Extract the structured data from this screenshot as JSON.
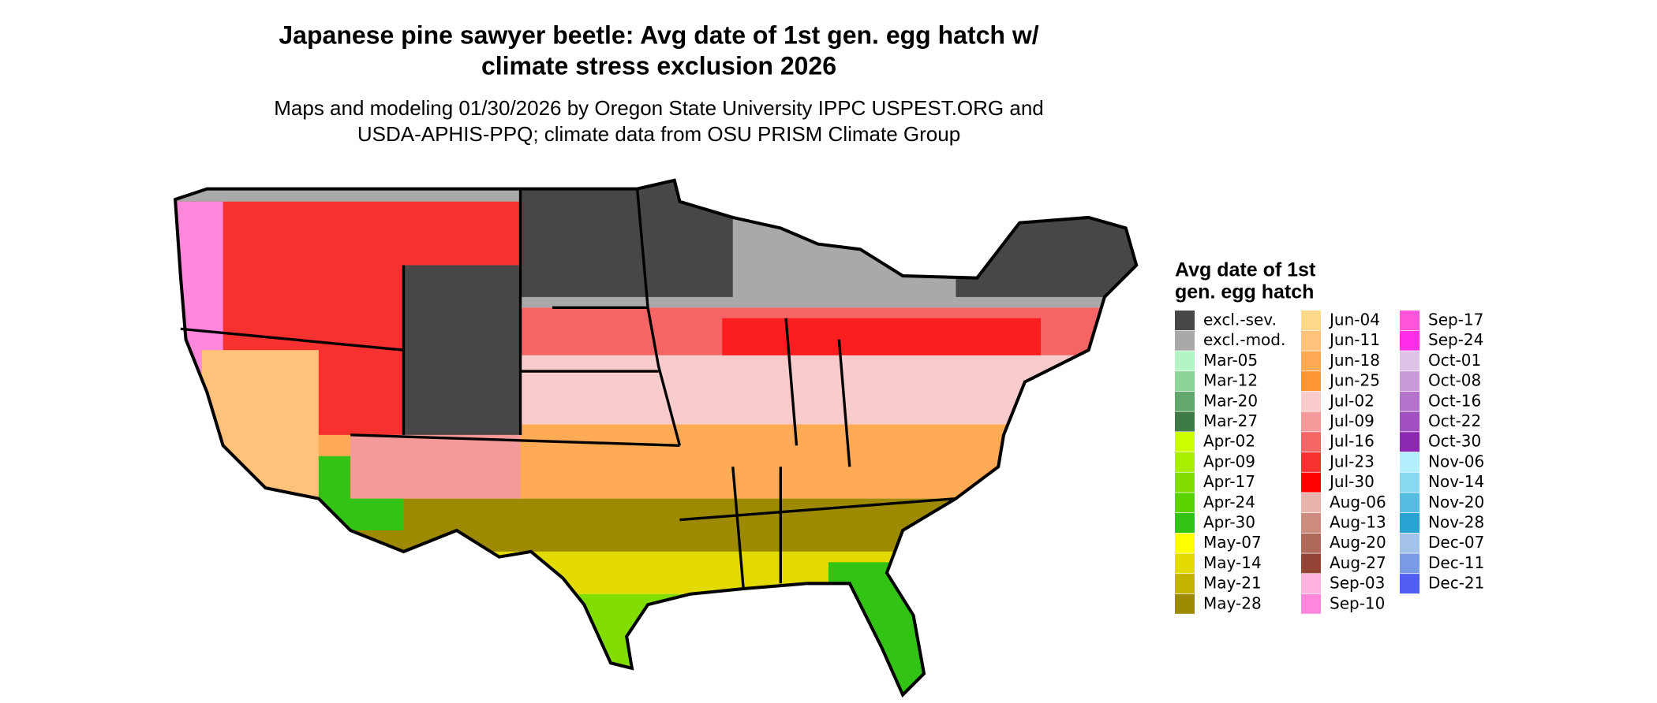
{
  "header": {
    "title": [
      "Japanese pine sawyer beetle: Avg date of 1st gen. egg hatch w/",
      "climate stress exclusion 2026"
    ],
    "subtitle": [
      "Maps and modeling 01/30/2026 by Oregon State University IPPC USPEST.ORG and",
      "USDA-APHIS-PPQ; climate data from OSU PRISM Climate Group"
    ]
  },
  "legend": {
    "title": [
      "Avg date of 1st",
      "gen. egg hatch"
    ],
    "items": [
      {
        "label": "excl.-sev.",
        "color": "#474747"
      },
      {
        "label": "excl.-mod.",
        "color": "#a9a9a9"
      },
      {
        "label": "Mar-05",
        "color": "#b3f5c4"
      },
      {
        "label": "Mar-12",
        "color": "#8dd49a"
      },
      {
        "label": "Mar-20",
        "color": "#62a86c"
      },
      {
        "label": "Mar-27",
        "color": "#3d7a45"
      },
      {
        "label": "Apr-02",
        "color": "#ccff00"
      },
      {
        "label": "Apr-09",
        "color": "#a8ee00"
      },
      {
        "label": "Apr-17",
        "color": "#82de00"
      },
      {
        "label": "Apr-24",
        "color": "#5cd300"
      },
      {
        "label": "Apr-30",
        "color": "#33c314"
      },
      {
        "label": "May-07",
        "color": "#ffff00"
      },
      {
        "label": "May-14",
        "color": "#e3db00"
      },
      {
        "label": "May-21",
        "color": "#c4b400"
      },
      {
        "label": "May-28",
        "color": "#9e8a00"
      },
      {
        "label": "Jun-04",
        "color": "#ffd98a"
      },
      {
        "label": "Jun-11",
        "color": "#ffc27a"
      },
      {
        "label": "Jun-18",
        "color": "#ffab55"
      },
      {
        "label": "Jun-25",
        "color": "#ff9633"
      },
      {
        "label": "Jul-02",
        "color": "#f8cccc"
      },
      {
        "label": "Jul-09",
        "color": "#f59a9a"
      },
      {
        "label": "Jul-16",
        "color": "#f56565"
      },
      {
        "label": "Jul-23",
        "color": "#f73030"
      },
      {
        "label": "Jul-30",
        "color": "#ff0000"
      },
      {
        "label": "Aug-06",
        "color": "#e8b3aa"
      },
      {
        "label": "Aug-13",
        "color": "#cc8d80"
      },
      {
        "label": "Aug-20",
        "color": "#b06858"
      },
      {
        "label": "Aug-27",
        "color": "#944435"
      },
      {
        "label": "Sep-03",
        "color": "#ffb3dd"
      },
      {
        "label": "Sep-10",
        "color": "#ff88dd"
      },
      {
        "label": "Sep-17",
        "color": "#ff55dd"
      },
      {
        "label": "Sep-24",
        "color": "#ff2ee8"
      },
      {
        "label": "Oct-01",
        "color": "#dfc2e8"
      },
      {
        "label": "Oct-08",
        "color": "#c99ad8"
      },
      {
        "label": "Oct-16",
        "color": "#b474cc"
      },
      {
        "label": "Oct-22",
        "color": "#a050c0"
      },
      {
        "label": "Oct-30",
        "color": "#8c29b0"
      },
      {
        "label": "Nov-06",
        "color": "#b3eeff"
      },
      {
        "label": "Nov-14",
        "color": "#88d8f0"
      },
      {
        "label": "Nov-20",
        "color": "#55bde0"
      },
      {
        "label": "Nov-28",
        "color": "#2aa2d2"
      },
      {
        "label": "Dec-07",
        "color": "#a3c2e8"
      },
      {
        "label": "Dec-11",
        "color": "#7a9ae6"
      },
      {
        "label": "Dec-21",
        "color": "#4f5ef0"
      }
    ]
  }
}
